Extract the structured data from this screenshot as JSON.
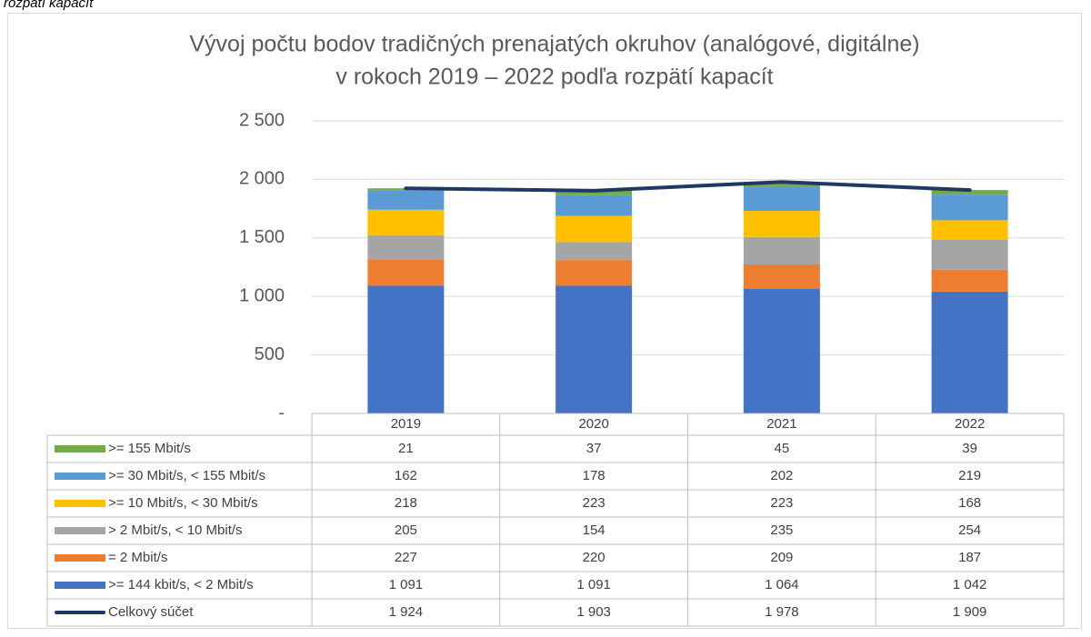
{
  "caption": "rozpätí kapacít",
  "chart_data": {
    "type": "bar",
    "stacked": true,
    "title": "Vývoj počtu bodov tradičných prenajatých okruhov (analógové, digitálne)",
    "subtitle": "v rokoch 2019 – 2022 podľa rozpätí kapacít",
    "categories": [
      "2019",
      "2020",
      "2021",
      "2022"
    ],
    "series": [
      {
        "name": ">= 155 Mbit/s",
        "color": "#70ad47",
        "values": [
          21,
          37,
          45,
          39
        ]
      },
      {
        "name": ">= 30 Mbit/s, < 155 Mbit/s",
        "color": "#5b9bd5",
        "values": [
          162,
          178,
          202,
          219
        ]
      },
      {
        "name": ">= 10 Mbit/s, < 30 Mbit/s",
        "color": "#ffc000",
        "values": [
          218,
          223,
          223,
          168
        ]
      },
      {
        "name": "> 2 Mbit/s, < 10 Mbit/s",
        "color": "#a5a5a5",
        "values": [
          205,
          154,
          235,
          254
        ]
      },
      {
        "name": "= 2 Mbit/s",
        "color": "#ed7d31",
        "values": [
          227,
          220,
          209,
          187
        ]
      },
      {
        "name": ">= 144 kbit/s, < 2 Mbit/s",
        "color": "#4472c4",
        "values": [
          1091,
          1091,
          1064,
          1042
        ],
        "value_labels": [
          "1 091",
          "1 091",
          "1 064",
          "1 042"
        ]
      },
      {
        "name": "Celkový súčet",
        "type": "line",
        "color": "#203864",
        "values": [
          1924,
          1903,
          1978,
          1909
        ],
        "value_labels": [
          "1 924",
          "1 903",
          "1 978",
          "1 909"
        ]
      }
    ],
    "ylim": [
      0,
      2500
    ],
    "yticks": [
      {
        "value": 0,
        "label": "-"
      },
      500,
      {
        "value": 1000,
        "label": "1 000"
      },
      {
        "value": 1500,
        "label": "1 500"
      },
      {
        "value": 2000,
        "label": "2 000"
      },
      {
        "value": 2500,
        "label": "2 500"
      }
    ],
    "grid": true,
    "data_table": true
  }
}
